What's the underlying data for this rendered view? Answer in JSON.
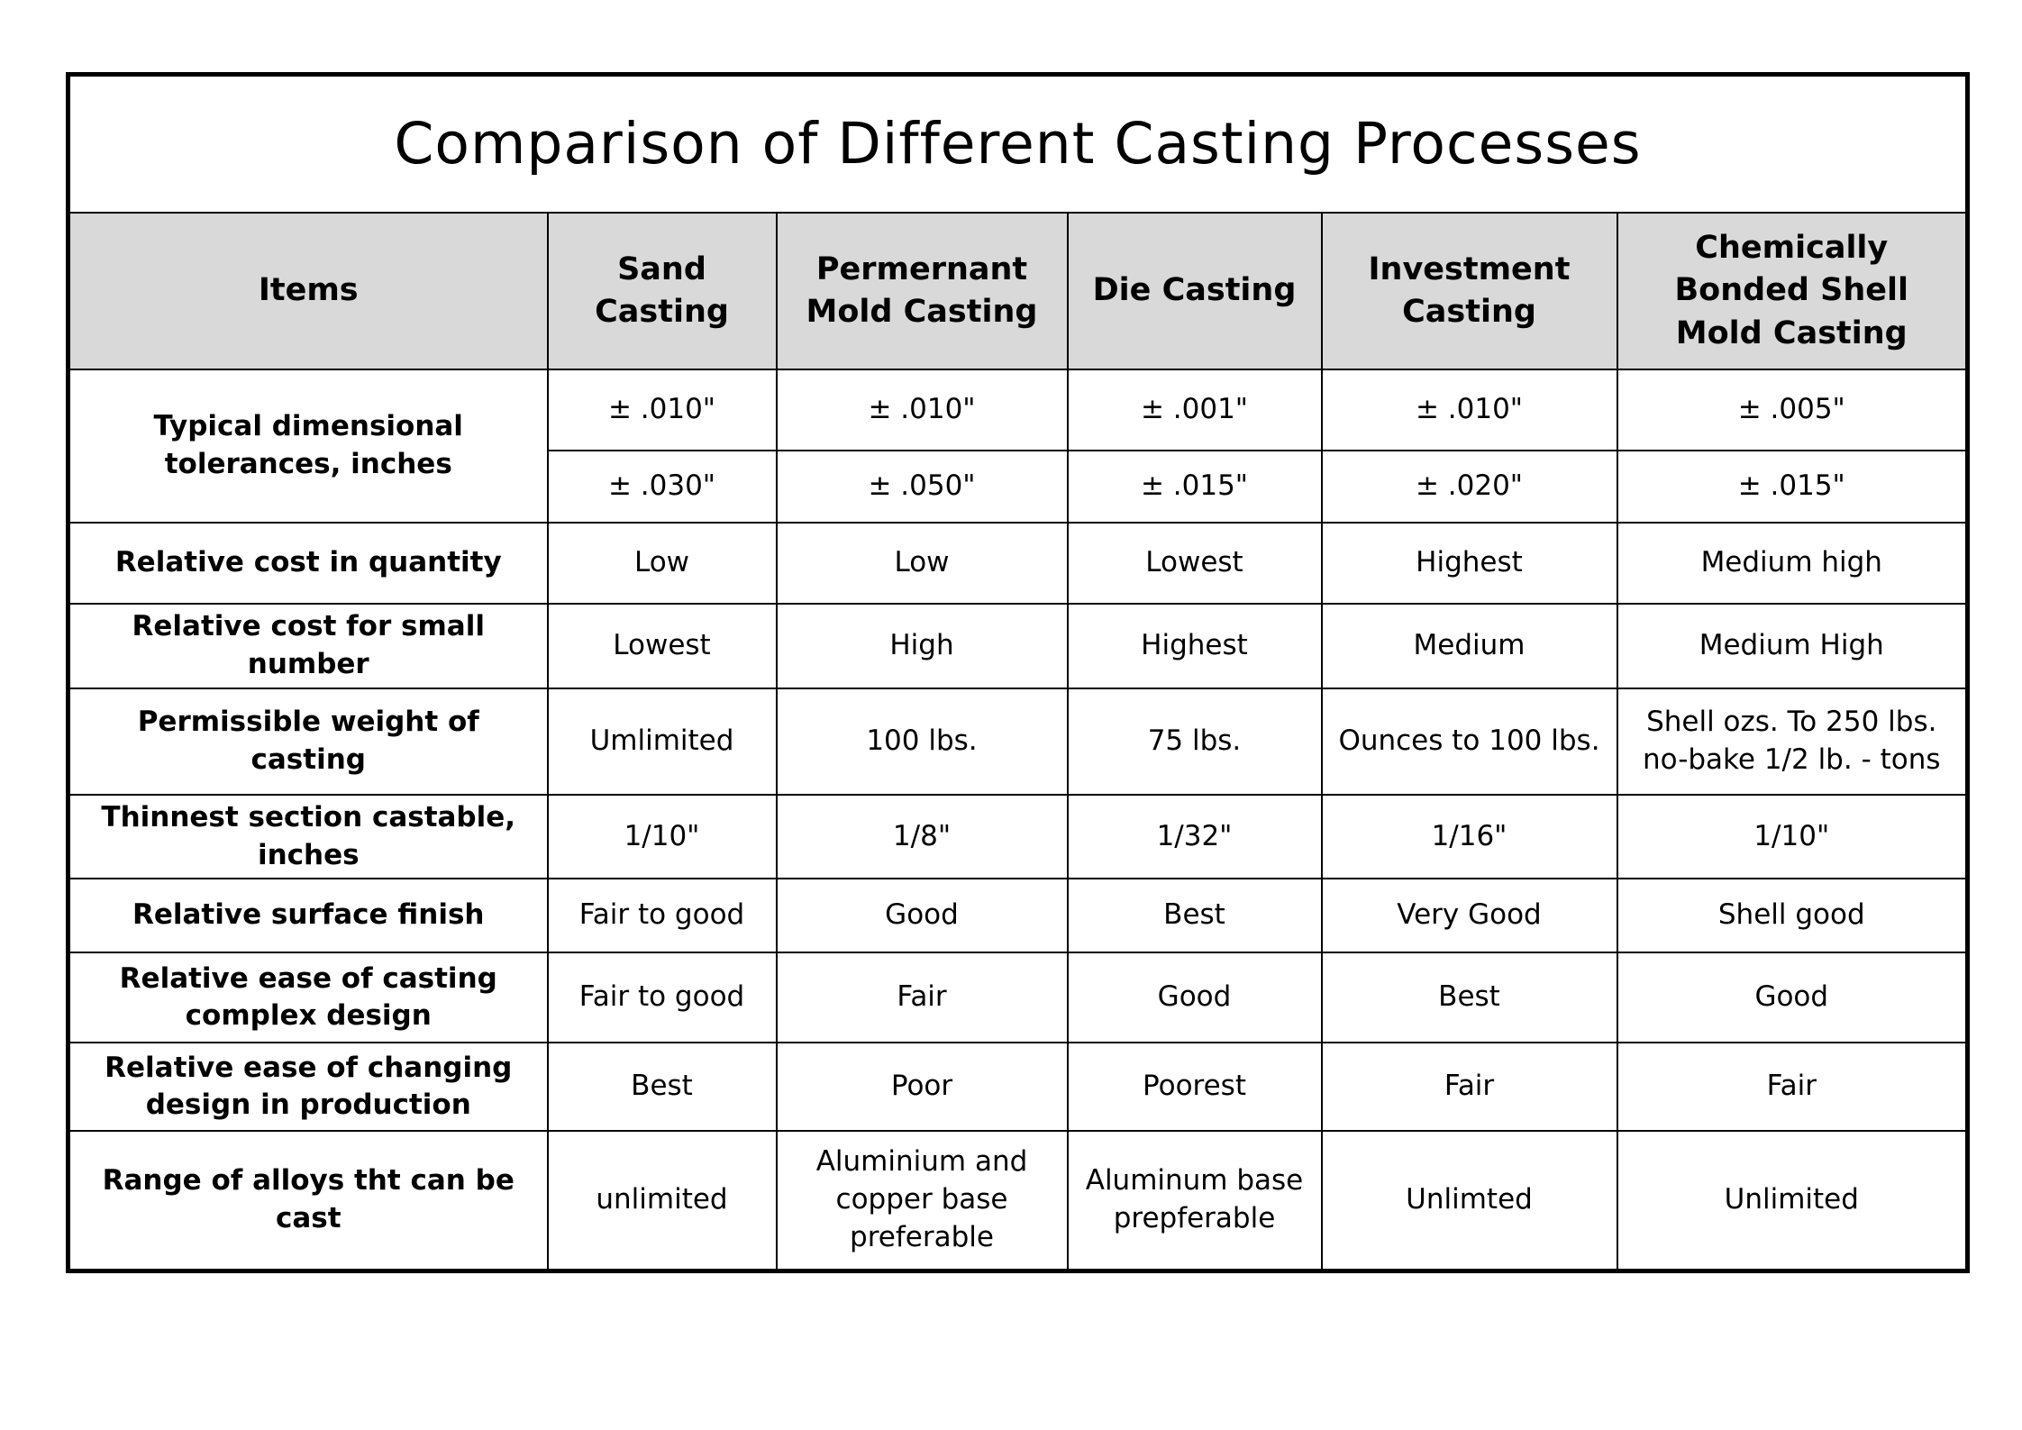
{
  "title": "Comparison of Different Casting Processes",
  "headers": [
    "Items",
    "Sand Casting",
    "Permernant Mold Casting",
    "Die Casting",
    "Investment Casting",
    "Chemically Bonded Shell Mold Casting"
  ],
  "tolerance_row": {
    "label": "Typical dimensional tolerances, inches",
    "values_min": [
      "± .010\"",
      "± .010\"",
      "± .001\"",
      "± .010\"",
      "± .005\""
    ],
    "values_max": [
      "± .030\"",
      "± .050\"",
      "± .015\"",
      "± .020\"",
      "± .015\""
    ]
  },
  "rows": [
    {
      "label": "Relative cost in quantity",
      "values": [
        "Low",
        "Low",
        "Lowest",
        "Highest",
        "Medium high"
      ]
    },
    {
      "label": "Relative cost for small number",
      "values": [
        "Lowest",
        "High",
        "Highest",
        "Medium",
        "Medium High"
      ]
    },
    {
      "label": "Permissible weight of casting",
      "values": [
        "Umlimited",
        "100 lbs.",
        "75 lbs.",
        "Ounces to 100 lbs.",
        "Shell ozs. To 250 lbs. no-bake 1/2 lb. - tons"
      ]
    },
    {
      "label": "Thinnest section castable, inches",
      "values": [
        "1/10\"",
        "1/8\"",
        "1/32\"",
        "1/16\"",
        "1/10\""
      ]
    },
    {
      "label": "Relative surface finish",
      "values": [
        "Fair to good",
        "Good",
        "Best",
        "Very Good",
        "Shell good"
      ]
    },
    {
      "label": "Relative ease of casting complex design",
      "values": [
        "Fair to good",
        "Fair",
        "Good",
        "Best",
        "Good"
      ]
    },
    {
      "label": "Relative ease of changing design in production",
      "values": [
        "Best",
        "Poor",
        "Poorest",
        "Fair",
        "Fair"
      ]
    },
    {
      "label": "Range of alloys tht can be cast",
      "values": [
        "unlimited",
        "Aluminium and copper base preferable",
        "Aluminum base prepferable",
        "Unlimted",
        "Unlimited"
      ]
    }
  ]
}
